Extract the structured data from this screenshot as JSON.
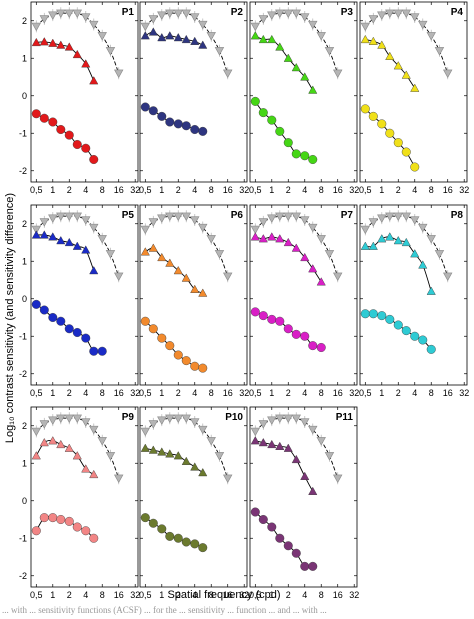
{
  "figure": {
    "xlabel": "Spatial frequency (cpd)",
    "ylabel": "Log₁₀ contrast sensitivity (and sensitivity difference)",
    "caption": "... with ... sensitivity functions (ACSF) ... for the ... sensitivity ... function ... and ... with ..."
  },
  "axes": {
    "x_ticks": [
      0.5,
      1,
      2,
      4,
      8,
      16,
      32
    ],
    "x_tick_labels": [
      "0,5",
      "1",
      "2",
      "4",
      "8",
      "16",
      "32"
    ],
    "x_scale": "log",
    "xlim": [
      0.4,
      36
    ],
    "y_ticks": [
      -2,
      -1,
      0,
      1,
      2
    ],
    "y_tick_labels": [
      "-2",
      "-1",
      "0",
      "1",
      "2"
    ],
    "ylim": [
      -2.3,
      2.5
    ]
  },
  "colors": {
    "reference": "#b5b5b5",
    "reference_edge": "#8a8a8a",
    "fit": "#000000",
    "P1": "#e2191b",
    "P2": "#2e3580",
    "P3": "#45d615",
    "P4": "#f0e019",
    "P5": "#1a2bc6",
    "P6": "#f28a2d",
    "P7": "#d91fc6",
    "P8": "#2ecbd4",
    "P9": "#f28585",
    "P10": "#6b7a2e",
    "P11": "#7a3575"
  },
  "chart_data": [
    {
      "type": "scatter",
      "panel": "P1",
      "marker": "triangle-up",
      "series": [
        {
          "x": [
            0.5,
            0.7,
            1,
            1.4,
            2,
            2.8,
            4,
            5.6,
            8,
            11.3,
            16
          ],
          "values": [
            1.85,
            2.05,
            2.15,
            2.2,
            2.2,
            2.2,
            2.1,
            1.9,
            1.6,
            1.2,
            0.6
          ]
        },
        {
          "x": [
            0.5,
            0.7,
            1,
            1.4,
            2,
            2.8,
            4,
            5.6
          ],
          "values": [
            1.42,
            1.44,
            1.4,
            1.35,
            1.3,
            1.1,
            0.85,
            0.4
          ]
        },
        {
          "x": [
            0.5,
            0.7,
            1,
            1.4,
            2,
            2.8,
            4,
            5.6
          ],
          "values": [
            -0.48,
            -0.6,
            -0.7,
            -0.9,
            -1.05,
            -1.3,
            -1.4,
            -1.7
          ]
        }
      ]
    },
    {
      "type": "scatter",
      "panel": "P2",
      "marker": "triangle-up",
      "series": [
        {
          "x": [
            0.5,
            0.7,
            1,
            1.4,
            2,
            2.8,
            4,
            5.6,
            8,
            11.3,
            16
          ],
          "values": [
            1.85,
            2.05,
            2.15,
            2.2,
            2.2,
            2.2,
            2.1,
            1.9,
            1.6,
            1.2,
            0.6
          ]
        },
        {
          "x": [
            0.5,
            0.7,
            1,
            1.4,
            2,
            2.8,
            4,
            5.6
          ],
          "values": [
            1.6,
            1.7,
            1.55,
            1.6,
            1.55,
            1.5,
            1.45,
            1.35
          ]
        },
        {
          "x": [
            0.5,
            0.7,
            1,
            1.4,
            2,
            2.8,
            4,
            5.6
          ],
          "values": [
            -0.3,
            -0.4,
            -0.55,
            -0.7,
            -0.75,
            -0.8,
            -0.9,
            -0.95
          ]
        }
      ]
    },
    {
      "type": "scatter",
      "panel": "P3",
      "marker": "triangle-up",
      "series": [
        {
          "x": [
            0.5,
            0.7,
            1,
            1.4,
            2,
            2.8,
            4,
            5.6,
            8,
            11.3,
            16
          ],
          "values": [
            1.85,
            2.05,
            2.15,
            2.2,
            2.2,
            2.2,
            2.1,
            1.9,
            1.6,
            1.2,
            0.6
          ]
        },
        {
          "x": [
            0.5,
            0.7,
            1,
            1.4,
            2,
            2.8,
            4,
            5.6
          ],
          "values": [
            1.6,
            1.5,
            1.5,
            1.3,
            1.0,
            0.75,
            0.5,
            0.15
          ]
        },
        {
          "x": [
            0.5,
            0.7,
            1,
            1.4,
            2,
            2.8,
            4,
            5.6
          ],
          "values": [
            -0.15,
            -0.45,
            -0.65,
            -0.95,
            -1.25,
            -1.55,
            -1.6,
            -1.7
          ]
        }
      ]
    },
    {
      "type": "scatter",
      "panel": "P4",
      "marker": "triangle-up",
      "series": [
        {
          "x": [
            0.5,
            0.7,
            1,
            1.4,
            2,
            2.8,
            4,
            5.6,
            8,
            11.3,
            16
          ],
          "values": [
            1.85,
            2.05,
            2.15,
            2.2,
            2.2,
            2.2,
            2.1,
            1.9,
            1.6,
            1.2,
            0.6
          ]
        },
        {
          "x": [
            0.5,
            0.7,
            1,
            1.4,
            2,
            2.8,
            4
          ],
          "values": [
            1.5,
            1.45,
            1.35,
            1.05,
            0.8,
            0.55,
            0.2
          ]
        },
        {
          "x": [
            0.5,
            0.7,
            1,
            1.4,
            2,
            2.8,
            4
          ],
          "values": [
            -0.35,
            -0.55,
            -0.75,
            -1.0,
            -1.25,
            -1.5,
            -1.9
          ]
        }
      ]
    },
    {
      "type": "scatter",
      "panel": "P5",
      "marker": "triangle-up",
      "series": [
        {
          "x": [
            0.5,
            0.7,
            1,
            1.4,
            2,
            2.8,
            4,
            5.6,
            8,
            11.3,
            16
          ],
          "values": [
            1.85,
            2.05,
            2.15,
            2.2,
            2.2,
            2.2,
            2.1,
            1.9,
            1.6,
            1.2,
            0.6
          ]
        },
        {
          "x": [
            0.5,
            0.7,
            1,
            1.4,
            2,
            2.8,
            4,
            5.6
          ],
          "values": [
            1.7,
            1.7,
            1.65,
            1.55,
            1.5,
            1.4,
            1.3,
            0.75
          ]
        },
        {
          "x": [
            0.5,
            0.7,
            1,
            1.4,
            2,
            2.8,
            4,
            5.6,
            8
          ],
          "values": [
            -0.15,
            -0.3,
            -0.5,
            -0.6,
            -0.8,
            -0.9,
            -1.05,
            -1.4,
            -1.4
          ]
        }
      ]
    },
    {
      "type": "scatter",
      "panel": "P6",
      "marker": "triangle-up",
      "series": [
        {
          "x": [
            0.5,
            0.7,
            1,
            1.4,
            2,
            2.8,
            4,
            5.6,
            8,
            11.3,
            16
          ],
          "values": [
            1.85,
            2.05,
            2.15,
            2.2,
            2.2,
            2.2,
            2.1,
            1.9,
            1.6,
            1.2,
            0.6
          ]
        },
        {
          "x": [
            0.5,
            0.7,
            1,
            1.4,
            2,
            2.8,
            4,
            5.6
          ],
          "values": [
            1.25,
            1.35,
            1.1,
            0.95,
            0.75,
            0.55,
            0.25,
            0.15
          ]
        },
        {
          "x": [
            0.5,
            0.7,
            1,
            1.4,
            2,
            2.8,
            4,
            5.6
          ],
          "values": [
            -0.6,
            -0.8,
            -1.05,
            -1.25,
            -1.5,
            -1.65,
            -1.8,
            -1.85
          ]
        }
      ]
    },
    {
      "type": "scatter",
      "panel": "P7",
      "marker": "triangle-up",
      "series": [
        {
          "x": [
            0.5,
            0.7,
            1,
            1.4,
            2,
            2.8,
            4,
            5.6,
            8,
            11.3,
            16
          ],
          "values": [
            1.85,
            2.05,
            2.15,
            2.2,
            2.2,
            2.2,
            2.1,
            1.9,
            1.6,
            1.2,
            0.6
          ]
        },
        {
          "x": [
            0.5,
            0.7,
            1,
            1.4,
            2,
            2.8,
            4,
            5.6,
            8
          ],
          "values": [
            1.65,
            1.6,
            1.65,
            1.6,
            1.5,
            1.35,
            1.1,
            0.8,
            0.45
          ]
        },
        {
          "x": [
            0.5,
            0.7,
            1,
            1.4,
            2,
            2.8,
            4,
            5.6,
            8
          ],
          "values": [
            -0.35,
            -0.45,
            -0.55,
            -0.6,
            -0.8,
            -0.95,
            -1.0,
            -1.25,
            -1.3
          ]
        }
      ]
    },
    {
      "type": "scatter",
      "panel": "P8",
      "marker": "triangle-up",
      "series": [
        {
          "x": [
            0.5,
            0.7,
            1,
            1.4,
            2,
            2.8,
            4,
            5.6,
            8,
            11.3,
            16
          ],
          "values": [
            1.85,
            2.05,
            2.15,
            2.2,
            2.2,
            2.2,
            2.1,
            1.9,
            1.6,
            1.2,
            0.6
          ]
        },
        {
          "x": [
            0.5,
            0.7,
            1,
            1.4,
            2,
            2.8,
            4,
            5.6,
            8
          ],
          "values": [
            1.4,
            1.4,
            1.6,
            1.65,
            1.55,
            1.5,
            1.2,
            0.9,
            0.2
          ]
        },
        {
          "x": [
            0.5,
            0.7,
            1,
            1.4,
            2,
            2.8,
            4,
            5.6,
            8
          ],
          "values": [
            -0.4,
            -0.4,
            -0.45,
            -0.55,
            -0.7,
            -0.85,
            -1.0,
            -1.1,
            -1.35
          ]
        }
      ]
    },
    {
      "type": "scatter",
      "panel": "P9",
      "marker": "triangle-up",
      "series": [
        {
          "x": [
            0.5,
            0.7,
            1,
            1.4,
            2,
            2.8,
            4,
            5.6,
            8,
            11.3,
            16
          ],
          "values": [
            1.85,
            2.05,
            2.15,
            2.2,
            2.2,
            2.2,
            2.1,
            1.9,
            1.6,
            1.2,
            0.6
          ]
        },
        {
          "x": [
            0.5,
            0.7,
            1,
            1.4,
            2,
            2.8,
            4,
            5.6
          ],
          "values": [
            1.2,
            1.55,
            1.6,
            1.5,
            1.4,
            1.2,
            0.85,
            0.7
          ]
        },
        {
          "x": [
            0.5,
            0.7,
            1,
            1.4,
            2,
            2.8,
            4,
            5.6
          ],
          "values": [
            -0.8,
            -0.45,
            -0.45,
            -0.5,
            -0.55,
            -0.7,
            -0.8,
            -1.0
          ]
        }
      ]
    },
    {
      "type": "scatter",
      "panel": "P10",
      "marker": "triangle-up",
      "series": [
        {
          "x": [
            0.5,
            0.7,
            1,
            1.4,
            2,
            2.8,
            4,
            5.6,
            8,
            11.3,
            16
          ],
          "values": [
            1.85,
            2.05,
            2.15,
            2.2,
            2.2,
            2.2,
            2.1,
            1.9,
            1.6,
            1.2,
            0.6
          ]
        },
        {
          "x": [
            0.5,
            0.7,
            1,
            1.4,
            2,
            2.8,
            4,
            5.6
          ],
          "values": [
            1.4,
            1.35,
            1.3,
            1.25,
            1.2,
            1.05,
            0.9,
            0.75
          ]
        },
        {
          "x": [
            0.5,
            0.7,
            1,
            1.4,
            2,
            2.8,
            4,
            5.6
          ],
          "values": [
            -0.45,
            -0.6,
            -0.75,
            -0.95,
            -1.0,
            -1.1,
            -1.15,
            -1.25
          ]
        }
      ]
    },
    {
      "type": "scatter",
      "panel": "P11",
      "marker": "triangle-up",
      "series": [
        {
          "x": [
            0.5,
            0.7,
            1,
            1.4,
            2,
            2.8,
            4,
            5.6,
            8,
            11.3,
            16
          ],
          "values": [
            1.85,
            2.05,
            2.15,
            2.2,
            2.2,
            2.2,
            2.1,
            1.9,
            1.6,
            1.2,
            0.6
          ]
        },
        {
          "x": [
            0.5,
            0.7,
            1,
            1.4,
            2,
            2.8,
            4,
            5.6
          ],
          "values": [
            1.6,
            1.55,
            1.5,
            1.45,
            1.4,
            1.1,
            0.65,
            0.25
          ]
        },
        {
          "x": [
            0.5,
            0.7,
            1,
            1.4,
            2,
            2.8,
            4,
            5.6
          ],
          "values": [
            -0.3,
            -0.5,
            -0.7,
            -1.0,
            -1.2,
            -1.4,
            -1.75,
            -1.75
          ]
        }
      ]
    }
  ]
}
